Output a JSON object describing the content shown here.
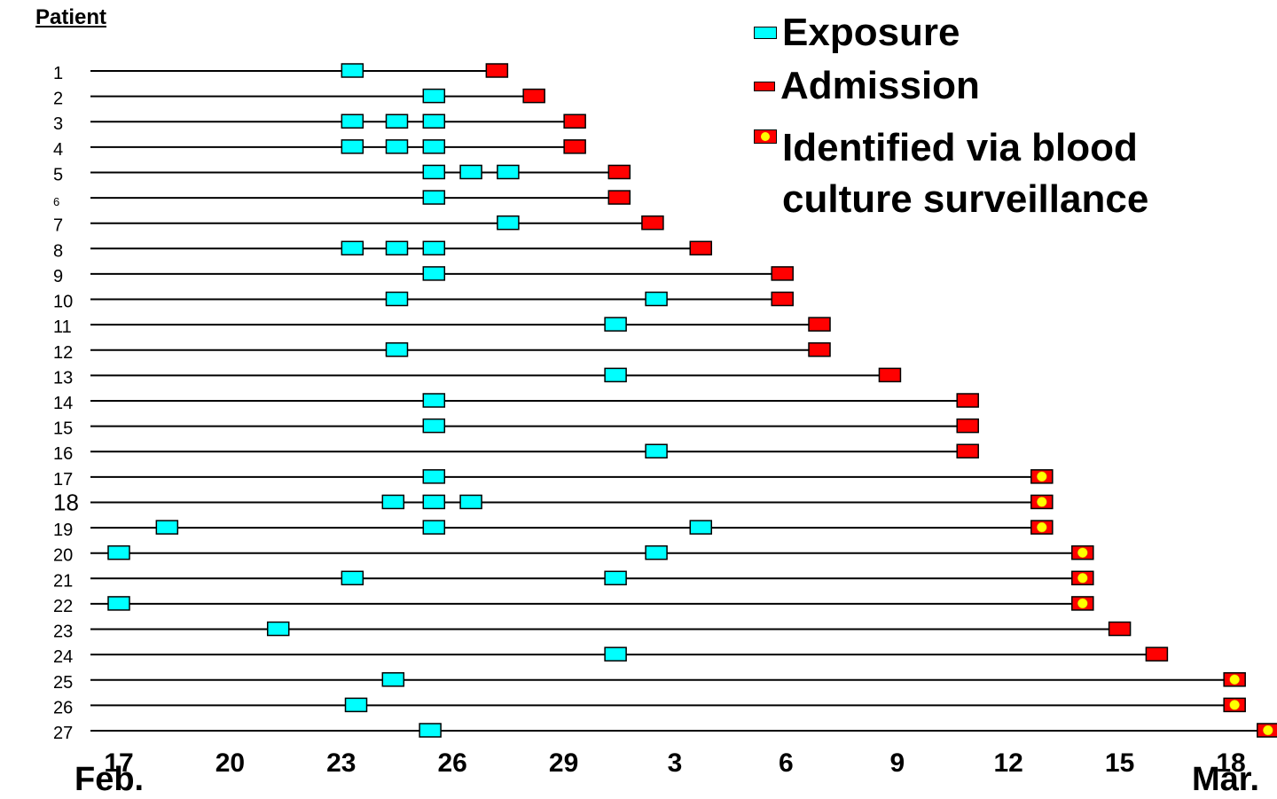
{
  "chart_data": {
    "type": "timeline",
    "title": "",
    "ylabel": "Patient",
    "months": [
      "Feb.",
      "Mar."
    ],
    "x_ticks": [
      {
        "label": "17",
        "day": 17
      },
      {
        "label": "20",
        "day": 20
      },
      {
        "label": "23",
        "day": 23
      },
      {
        "label": "26",
        "day": 26
      },
      {
        "label": "29",
        "day": 29
      },
      {
        "label": "3",
        "day": 32
      },
      {
        "label": "6",
        "day": 35
      },
      {
        "label": "9",
        "day": 38
      },
      {
        "label": "12",
        "day": 41
      },
      {
        "label": "15",
        "day": 44
      },
      {
        "label": "18",
        "day": 47
      }
    ],
    "x_range": [
      16.5,
      48
    ],
    "legend": [
      {
        "key": "exposure",
        "label": "Exposure",
        "color": "#00ffff"
      },
      {
        "key": "admission",
        "label": "Admission",
        "color": "#ff0000"
      },
      {
        "key": "blood",
        "label": "Identified via blood culture surveillance",
        "color": "#ff0000",
        "dot_color": "#ffff00"
      }
    ],
    "patients": [
      {
        "label": "1",
        "exposures": [
          23.3
        ],
        "admission": 27.2,
        "blood": false
      },
      {
        "label": "2",
        "exposures": [
          25.5
        ],
        "admission": 28.2,
        "blood": false
      },
      {
        "label": "3",
        "exposures": [
          23.3,
          24.5,
          25.5
        ],
        "admission": 29.3,
        "blood": false
      },
      {
        "label": "4",
        "exposures": [
          23.3,
          24.5,
          25.5
        ],
        "admission": 29.3,
        "blood": false
      },
      {
        "label": "5",
        "exposures": [
          25.5,
          26.5,
          27.5
        ],
        "admission": 30.5,
        "blood": false
      },
      {
        "label": "6",
        "exposures": [
          25.5
        ],
        "admission": 30.5,
        "blood": false
      },
      {
        "label": "7",
        "exposures": [
          27.5
        ],
        "admission": 31.4,
        "blood": false
      },
      {
        "label": "8",
        "exposures": [
          23.3,
          24.5,
          25.5
        ],
        "admission": 32.7,
        "blood": false
      },
      {
        "label": "9",
        "exposures": [
          25.5
        ],
        "admission": 34.9,
        "blood": false
      },
      {
        "label": "10",
        "exposures": [
          24.5,
          31.5
        ],
        "admission": 34.9,
        "blood": false
      },
      {
        "label": "11",
        "exposures": [
          30.4
        ],
        "admission": 35.9,
        "blood": false
      },
      {
        "label": "12",
        "exposures": [
          24.5
        ],
        "admission": 35.9,
        "blood": false
      },
      {
        "label": "13",
        "exposures": [
          30.4
        ],
        "admission": 37.8,
        "blood": false
      },
      {
        "label": "14",
        "exposures": [
          25.5
        ],
        "admission": 39.9,
        "blood": false
      },
      {
        "label": "15",
        "exposures": [
          25.5
        ],
        "admission": 39.9,
        "blood": false
      },
      {
        "label": "16",
        "exposures": [
          31.5
        ],
        "admission": 39.9,
        "blood": false
      },
      {
        "label": "17",
        "exposures": [
          25.5
        ],
        "admission": 41.9,
        "blood": true
      },
      {
        "label": "18",
        "exposures": [
          24.4,
          25.5,
          26.5
        ],
        "admission": 41.9,
        "blood": true
      },
      {
        "label": "19",
        "exposures": [
          18.3,
          25.5,
          32.7
        ],
        "admission": 41.9,
        "blood": true
      },
      {
        "label": "20",
        "exposures": [
          17.0,
          31.5
        ],
        "admission": 43.0,
        "blood": true
      },
      {
        "label": "21",
        "exposures": [
          23.3,
          30.4
        ],
        "admission": 43.0,
        "blood": true
      },
      {
        "label": "22",
        "exposures": [
          17.0
        ],
        "admission": 43.0,
        "blood": true
      },
      {
        "label": "23",
        "exposures": [
          21.3
        ],
        "admission": 44.0,
        "blood": false
      },
      {
        "label": "24",
        "exposures": [
          30.4
        ],
        "admission": 45.0,
        "blood": false
      },
      {
        "label": "25",
        "exposures": [
          24.4
        ],
        "admission": 47.1,
        "blood": true
      },
      {
        "label": "26",
        "exposures": [
          23.4
        ],
        "admission": 47.1,
        "blood": true
      },
      {
        "label": "27",
        "exposures": [
          25.4
        ],
        "admission": 48.0,
        "blood": true
      }
    ]
  }
}
